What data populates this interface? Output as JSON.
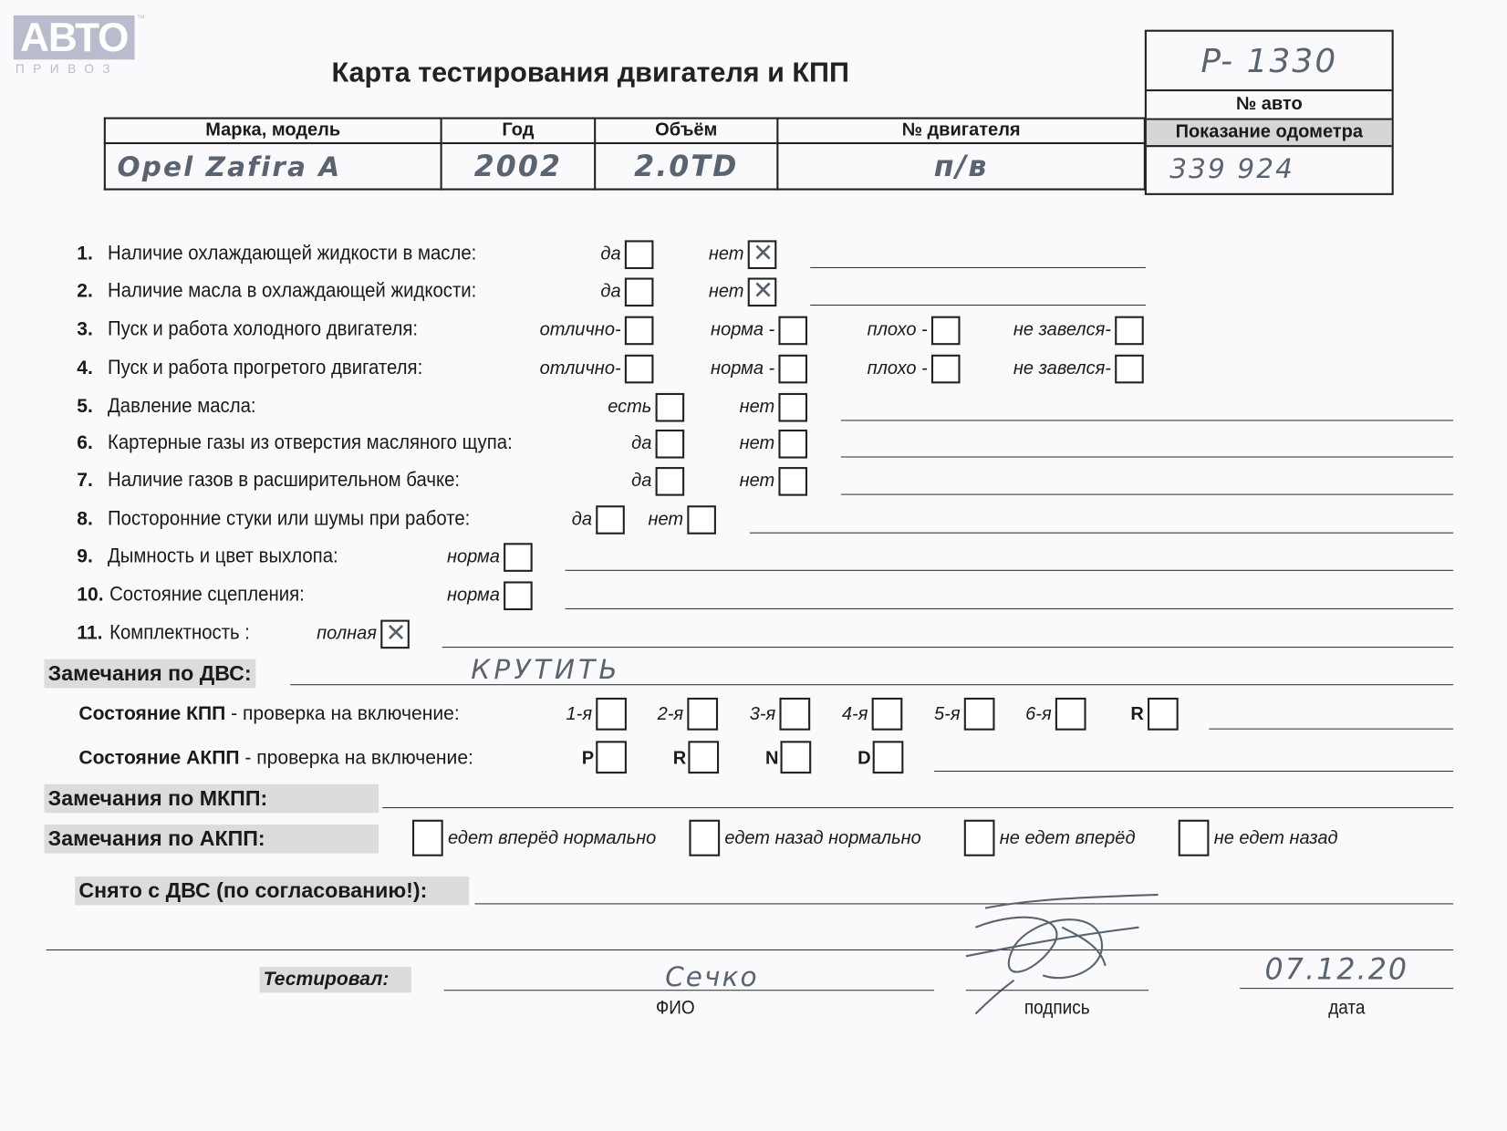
{
  "logo": {
    "text": "АВТО",
    "sub": "ПРИВОЗ",
    "tm": "™"
  },
  "title": "Карта тестирования двигателя  и КПП",
  "header_table": {
    "columns": [
      "Марка, модель",
      "Год",
      "Объём",
      "№ двигателя"
    ],
    "values": [
      "Opel Zafira A",
      "2002",
      "2.0TD",
      "п/в"
    ]
  },
  "car_box": {
    "car_number": "P- 1330",
    "car_number_label": "№ авто",
    "odometer_label": "Показание одометра",
    "odometer": "339 924"
  },
  "questions": [
    {
      "num": "1.",
      "label": "Наличие охлаждающей жидкости в масле:",
      "options": [
        {
          "label": "да",
          "checked": false
        },
        {
          "label": "нет",
          "checked": true
        }
      ]
    },
    {
      "num": "2.",
      "label": "Наличие масла в охлаждающей жидкости:",
      "options": [
        {
          "label": "да",
          "checked": false
        },
        {
          "label": "нет",
          "checked": true
        }
      ]
    },
    {
      "num": "3.",
      "label": "Пуск и работа холодного двигателя:",
      "options": [
        {
          "label": "отлично-",
          "checked": false
        },
        {
          "label": "норма -",
          "checked": false
        },
        {
          "label": "плохо -",
          "checked": false
        },
        {
          "label": "не завелся-",
          "checked": false
        }
      ]
    },
    {
      "num": "4.",
      "label": "Пуск и работа прогретого двигателя:",
      "options": [
        {
          "label": "отлично-",
          "checked": false
        },
        {
          "label": "норма -",
          "checked": false
        },
        {
          "label": "плохо -",
          "checked": false
        },
        {
          "label": "не завелся-",
          "checked": false
        }
      ]
    },
    {
      "num": "5.",
      "label": "Давление масла:",
      "options": [
        {
          "label": "есть",
          "checked": false
        },
        {
          "label": "нет",
          "checked": false
        }
      ]
    },
    {
      "num": "6.",
      "label": "Картерные газы из отверстия масляного щупа:",
      "options": [
        {
          "label": "да",
          "checked": false
        },
        {
          "label": "нет",
          "checked": false
        }
      ]
    },
    {
      "num": "7.",
      "label": "Наличие газов в расширительном бачке:",
      "options": [
        {
          "label": "да",
          "checked": false
        },
        {
          "label": "нет",
          "checked": false
        }
      ]
    },
    {
      "num": "8.",
      "label": "Посторонние стуки или шумы при работе:",
      "options": [
        {
          "label": "да",
          "checked": false
        },
        {
          "label": "нет",
          "checked": false
        }
      ]
    },
    {
      "num": "9.",
      "label": "Дымность и цвет выхлопа:",
      "options": [
        {
          "label": "норма",
          "checked": false
        }
      ]
    },
    {
      "num": "10.",
      "label": "Состояние сцепления:",
      "options": [
        {
          "label": "норма",
          "checked": false
        }
      ]
    },
    {
      "num": "11.",
      "label": "Комплектность :",
      "options": [
        {
          "label": "полная",
          "checked": true
        }
      ]
    }
  ],
  "engine_remarks": {
    "label": "Замечания по ДВС:",
    "value": "КРУТИТЬ"
  },
  "manual_gearbox": {
    "label_bold": "Состояние КПП",
    "label_rest": " - проверка на включение:",
    "options": [
      "1-я",
      "2-я",
      "3-я",
      "4-я",
      "5-я",
      "6-я",
      "R"
    ]
  },
  "auto_gearbox": {
    "label_bold": "Состояние АКПП",
    "label_rest": " - проверка на включение:",
    "options": [
      "P",
      "R",
      "N",
      "D"
    ]
  },
  "manual_remarks": {
    "label": "Замечания по МКПП:"
  },
  "auto_remarks": {
    "label": "Замечания по АКПП:",
    "options": [
      "едет вперёд нормально",
      "едет назад нормально",
      "не едет вперёд",
      "не едет назад"
    ]
  },
  "removed": {
    "label": "Снято с ДВС (по согласованию!):"
  },
  "footer": {
    "tested_by_label": "Тестировал:",
    "name": "Сечко",
    "name_caption": "ФИО",
    "signature_caption": "подпись",
    "date": "07.12.20",
    "date_caption": "дата"
  }
}
